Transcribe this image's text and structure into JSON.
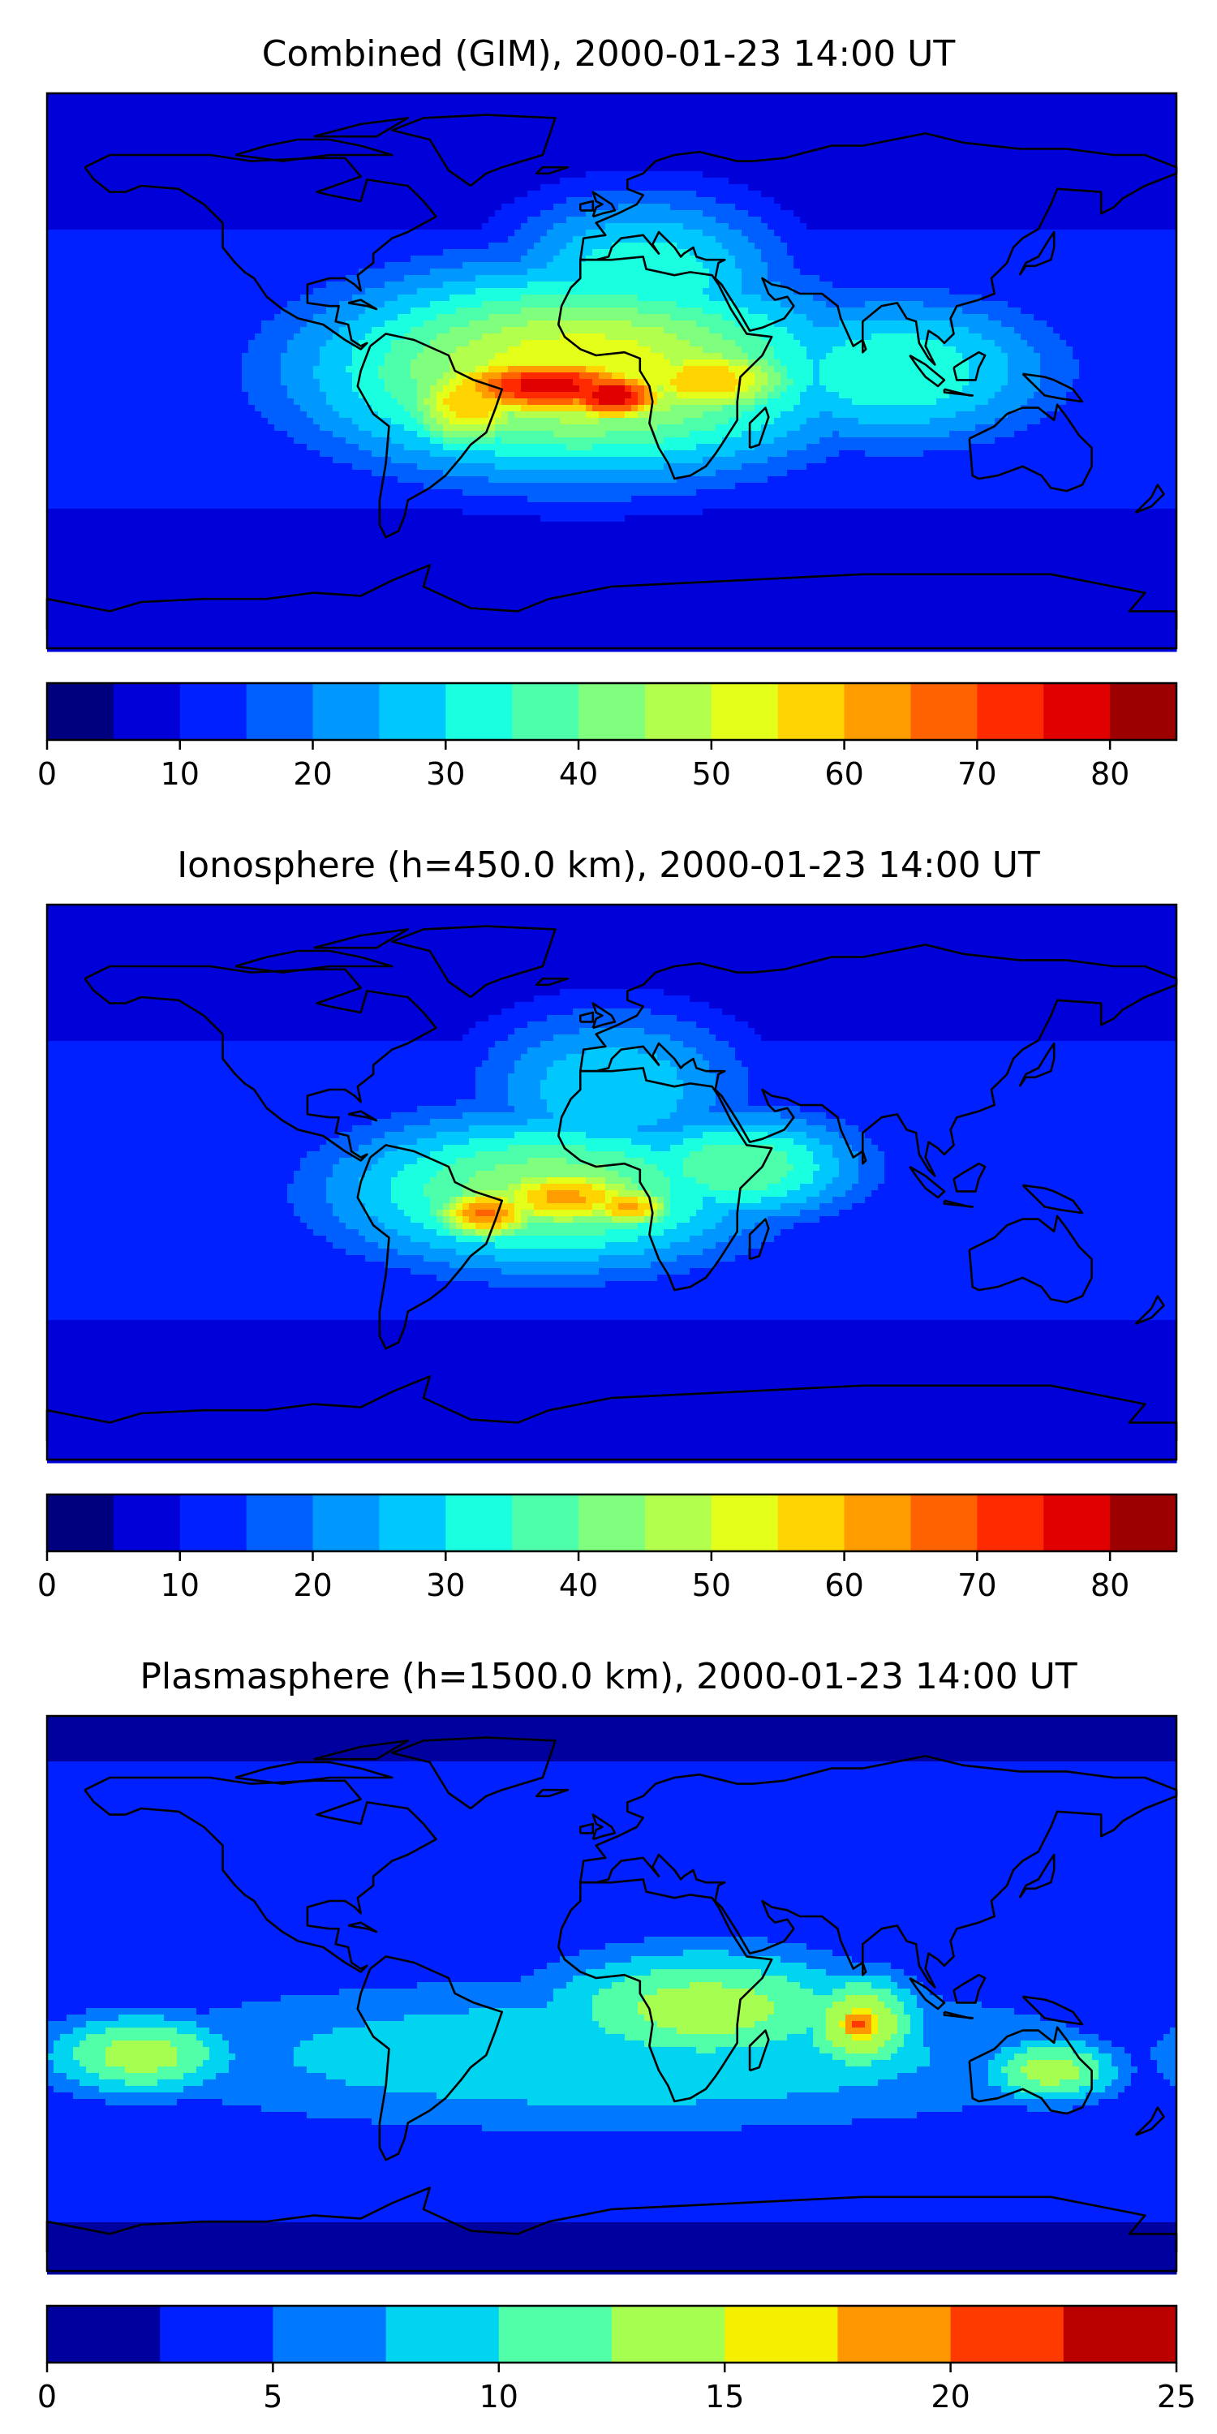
{
  "panels": [
    {
      "title": "Combined (GIM), 2000-01-23 14:00 UT",
      "colorbar": {
        "levels": [
          0,
          5,
          10,
          15,
          20,
          25,
          30,
          35,
          40,
          45,
          50,
          55,
          60,
          65,
          70,
          75,
          80,
          85
        ],
        "ticks": [
          "0",
          "10",
          "20",
          "30",
          "40",
          "50",
          "60",
          "70",
          "80"
        ],
        "tick_values": [
          0,
          10,
          20,
          30,
          40,
          50,
          60,
          70,
          80
        ]
      },
      "field_blobs": [
        {
          "lon": -20,
          "lat": -5,
          "value": 78,
          "rlon": 45,
          "rlat": 12
        },
        {
          "lon": 0,
          "lat": -8,
          "value": 80,
          "rlon": 22,
          "rlat": 10
        },
        {
          "lon": 30,
          "lat": -3,
          "value": 60,
          "rlon": 35,
          "rlat": 14
        },
        {
          "lon": -45,
          "lat": -10,
          "value": 60,
          "rlon": 25,
          "rlat": 18
        },
        {
          "lon": -10,
          "lat": 0,
          "value": 55,
          "rlon": 90,
          "rlat": 35
        },
        {
          "lon": 90,
          "lat": 0,
          "value": 35,
          "rlon": 60,
          "rlat": 28
        },
        {
          "lon": 10,
          "lat": 30,
          "value": 35,
          "rlon": 50,
          "rlat": 30
        }
      ]
    },
    {
      "title": "Ionosphere  (h=450.0 km), 2000-01-23 14:00 UT",
      "colorbar": {
        "levels": [
          0,
          5,
          10,
          15,
          20,
          25,
          30,
          35,
          40,
          45,
          50,
          55,
          60,
          65,
          70,
          75,
          80,
          85
        ],
        "ticks": [
          "0",
          "10",
          "20",
          "30",
          "40",
          "50",
          "60",
          "70",
          "80"
        ],
        "tick_values": [
          0,
          10,
          20,
          30,
          40,
          50,
          60,
          70,
          80
        ]
      },
      "field_blobs": [
        {
          "lon": -40,
          "lat": -10,
          "value": 67,
          "rlon": 20,
          "rlat": 10
        },
        {
          "lon": -15,
          "lat": -5,
          "value": 62,
          "rlon": 35,
          "rlat": 12
        },
        {
          "lon": 5,
          "lat": -8,
          "value": 62,
          "rlon": 18,
          "rlat": 8
        },
        {
          "lon": -20,
          "lat": -3,
          "value": 45,
          "rlon": 75,
          "rlat": 28
        },
        {
          "lon": 40,
          "lat": 5,
          "value": 40,
          "rlon": 45,
          "rlat": 20
        },
        {
          "lon": 0,
          "lat": 30,
          "value": 30,
          "rlon": 50,
          "rlat": 30
        }
      ]
    },
    {
      "title": "Plasmasphere (h=1500.0 km), 2000-01-23 14:00 UT",
      "colorbar": {
        "levels": [
          0,
          2.5,
          5,
          7.5,
          10,
          12.5,
          15,
          17.5,
          20,
          22.5,
          25
        ],
        "ticks": [
          "0",
          "5",
          "10",
          "15",
          "20",
          "25"
        ],
        "tick_values": [
          0,
          5,
          10,
          15,
          20,
          25
        ]
      },
      "field_blobs": [
        {
          "lon": 79,
          "lat": -10,
          "value": 21,
          "rlon": 10,
          "rlat": 8
        },
        {
          "lon": 79,
          "lat": -10,
          "value": 16,
          "rlon": 22,
          "rlat": 18
        },
        {
          "lon": 30,
          "lat": -5,
          "value": 14,
          "rlon": 60,
          "rlat": 22
        },
        {
          "lon": -150,
          "lat": -20,
          "value": 14,
          "rlon": 35,
          "rlat": 15
        },
        {
          "lon": 140,
          "lat": -25,
          "value": 14,
          "rlon": 25,
          "rlat": 12
        },
        {
          "lon": 0,
          "lat": -20,
          "value": 10,
          "rlon": 180,
          "rlat": 28
        },
        {
          "lon": -70,
          "lat": 0,
          "value": 4,
          "rlon": 25,
          "rlat": 30
        }
      ]
    }
  ],
  "colors": [
    "#00007f",
    "#0000d8",
    "#0020ff",
    "#0060ff",
    "#0098ff",
    "#00c8ff",
    "#1affe0",
    "#4dffaa",
    "#80ff7f",
    "#b2ff4d",
    "#e4ff1a",
    "#ffd400",
    "#ff9c00",
    "#ff6200",
    "#ff2a00",
    "#e00000",
    "#9c0000"
  ],
  "plasma_colors": [
    "#00009f",
    "#0020ff",
    "#0078ff",
    "#00d4f0",
    "#50ffa8",
    "#a6ff50",
    "#f4f000",
    "#ff9800",
    "#ff3a00",
    "#bb0000"
  ]
}
